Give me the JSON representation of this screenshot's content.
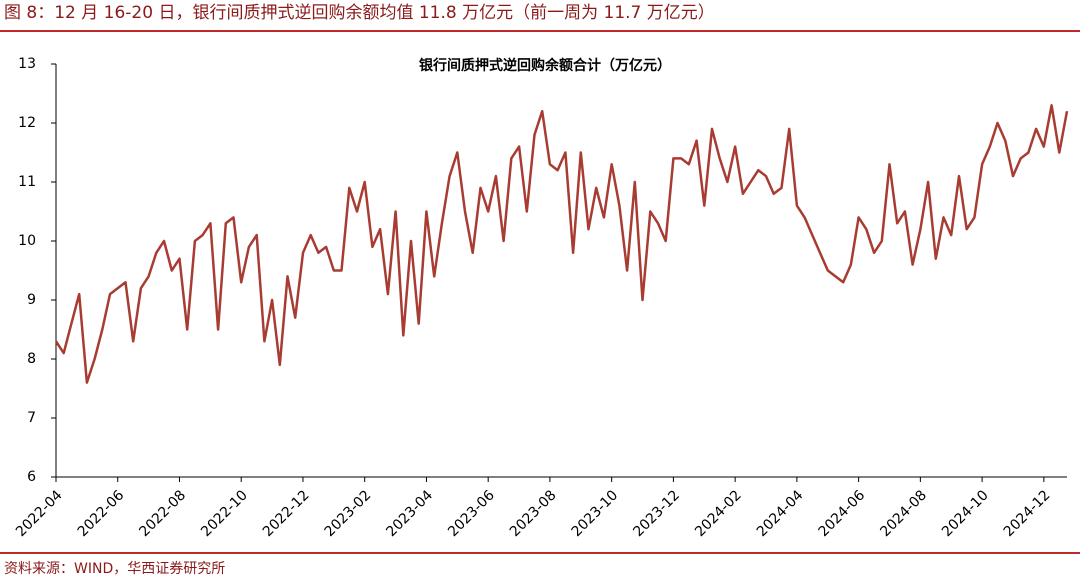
{
  "header": {
    "title": "图 8：12 月 16-20 日，银行间质押式逆回购余额均值 11.8 万亿元（前一周为 11.7 万亿元）"
  },
  "source": "资料来源：WIND，华西证券研究所",
  "chart_data": {
    "type": "line",
    "title": "银行间质押式逆回购余额合计（万亿元）",
    "color": "#a83c32",
    "categories": [
      "2022-04",
      null,
      null,
      null,
      null,
      null,
      null,
      null,
      "2022-06",
      null,
      null,
      null,
      null,
      null,
      null,
      null,
      "2022-08",
      null,
      null,
      null,
      null,
      null,
      null,
      null,
      "2022-10",
      null,
      null,
      null,
      null,
      null,
      null,
      null,
      "2022-12",
      null,
      null,
      null,
      null,
      null,
      null,
      null,
      "2023-02",
      null,
      null,
      null,
      null,
      null,
      null,
      null,
      "2023-04",
      null,
      null,
      null,
      null,
      null,
      null,
      null,
      "2023-06",
      null,
      null,
      null,
      null,
      null,
      null,
      null,
      "2023-08",
      null,
      null,
      null,
      null,
      null,
      null,
      null,
      "2023-10",
      null,
      null,
      null,
      null,
      null,
      null,
      null,
      "2023-12",
      null,
      null,
      null,
      null,
      null,
      null,
      null,
      "2024-02",
      null,
      null,
      null,
      null,
      null,
      null,
      null,
      "2024-04",
      null,
      null,
      null,
      null,
      null,
      null,
      null,
      "2024-06",
      null,
      null,
      null,
      null,
      null,
      null,
      null,
      "2024-08",
      null,
      null,
      null,
      null,
      null,
      null,
      null,
      "2024-10",
      null,
      null,
      null,
      null,
      null,
      null,
      null,
      "2024-12",
      null,
      null,
      null
    ],
    "values": [
      8.3,
      8.1,
      8.6,
      9.1,
      7.6,
      8.0,
      8.5,
      9.1,
      9.2,
      9.3,
      8.3,
      9.2,
      9.4,
      9.8,
      10.0,
      9.5,
      9.7,
      8.5,
      10.0,
      10.1,
      10.3,
      8.5,
      10.3,
      10.4,
      9.3,
      9.9,
      10.1,
      8.3,
      9.0,
      7.9,
      9.4,
      8.7,
      9.8,
      10.1,
      9.8,
      9.9,
      9.5,
      9.5,
      10.9,
      10.5,
      11.0,
      9.9,
      10.2,
      9.1,
      10.5,
      8.4,
      10.0,
      8.6,
      10.5,
      9.4,
      10.3,
      11.1,
      11.5,
      10.5,
      9.8,
      10.9,
      10.5,
      11.1,
      10.0,
      11.4,
      11.6,
      10.5,
      11.8,
      12.2,
      11.3,
      11.2,
      11.5,
      9.8,
      11.5,
      10.2,
      10.9,
      10.4,
      11.3,
      10.6,
      9.5,
      11.0,
      9.0,
      10.5,
      10.3,
      10.0,
      11.4,
      11.4,
      11.3,
      11.7,
      10.6,
      11.9,
      11.4,
      11.0,
      11.6,
      10.8,
      11.0,
      11.2,
      11.1,
      10.8,
      10.9,
      11.9,
      10.6,
      10.4,
      10.1,
      9.8,
      9.5,
      9.4,
      9.3,
      9.6,
      10.4,
      10.2,
      9.8,
      10.0,
      11.3,
      10.3,
      10.5,
      9.6,
      10.2,
      11.0,
      9.7,
      10.4,
      10.1,
      11.1,
      10.2,
      10.4,
      11.3,
      11.6,
      12.0,
      11.7,
      11.1,
      11.4,
      11.5,
      11.9,
      11.6,
      12.3,
      11.5,
      12.2
    ],
    "ylim": [
      6,
      13
    ],
    "yticks": [
      6,
      7,
      8,
      9,
      10,
      11,
      12,
      13
    ]
  }
}
